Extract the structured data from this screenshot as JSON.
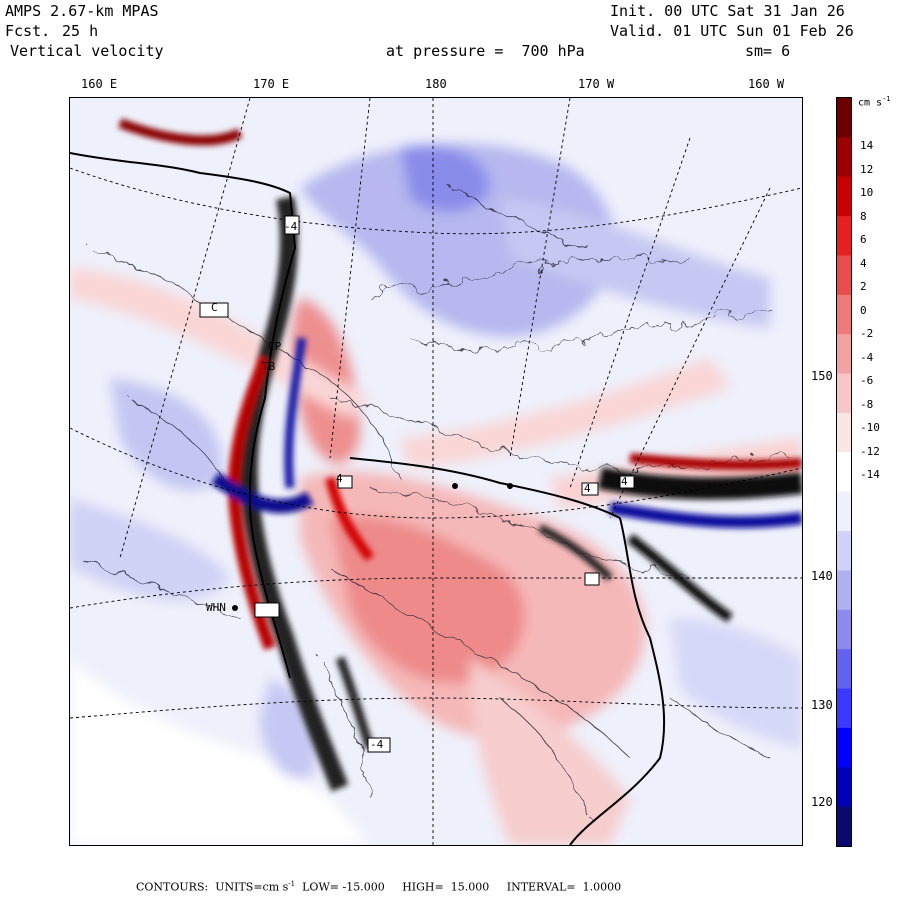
{
  "header": {
    "model": "AMPS 2.67-km MPAS",
    "forecast_label": "Fcst.",
    "forecast_value": "25 h",
    "field": "Vertical velocity",
    "init": "Init. 00 UTC Sat 31 Jan 26",
    "valid": "Valid. 01 UTC Sun 01 Feb 26",
    "pressure_text": "at pressure =  700 hPa",
    "smoothing": "sm= 6"
  },
  "longitude_labels": [
    "160 E",
    "170 E",
    "180",
    "170 W",
    "160 W"
  ],
  "latitude_labels": [
    "150 W",
    "140 W",
    "130 W",
    "120 W"
  ],
  "colorbar": {
    "units_base": "cm s",
    "units_exp": "-1",
    "ticks": [
      "14",
      "12",
      "10",
      "8",
      "6",
      "4",
      "2",
      "0",
      "-2",
      "-4",
      "-6",
      "-8",
      "-10",
      "-12",
      "-14"
    ],
    "colors": [
      "#0a0a6e",
      "#0000b8",
      "#0000ff",
      "#3a3aff",
      "#6262f2",
      "#8a8aef",
      "#aeb0f2",
      "#d0d2f8",
      "#eef0fb",
      "#ffffff",
      "#fbe6e6",
      "#f7c6c6",
      "#f2a2a2",
      "#ee7a7a",
      "#e84e4e",
      "#e42020",
      "#c80000",
      "#9c0000",
      "#6a0000"
    ]
  },
  "stations": [
    {
      "label": "C",
      "name": "station-c"
    },
    {
      "label": "CP",
      "name": "station-cp"
    },
    {
      "label": "TB",
      "name": "station-tb"
    },
    {
      "label": "WHN",
      "name": "station-whn"
    },
    {
      "label": "4",
      "name": "station-4-a"
    },
    {
      "label": "4",
      "name": "station-4-b"
    },
    {
      "label": "4",
      "name": "station-4-c"
    },
    {
      "label": "-4",
      "name": "station-neg4-a"
    },
    {
      "label": "-4",
      "name": "station-neg4-b"
    }
  ],
  "footer": {
    "contours_label": "CONTOURS:",
    "units_label": "UNITS=cm s",
    "units_exp": "-1",
    "low_label": "LOW=",
    "low_value": "-15.000",
    "high_label": "HIGH=",
    "high_value": "15.000",
    "interval_label": "INTERVAL=",
    "interval_value": "1.0000"
  }
}
